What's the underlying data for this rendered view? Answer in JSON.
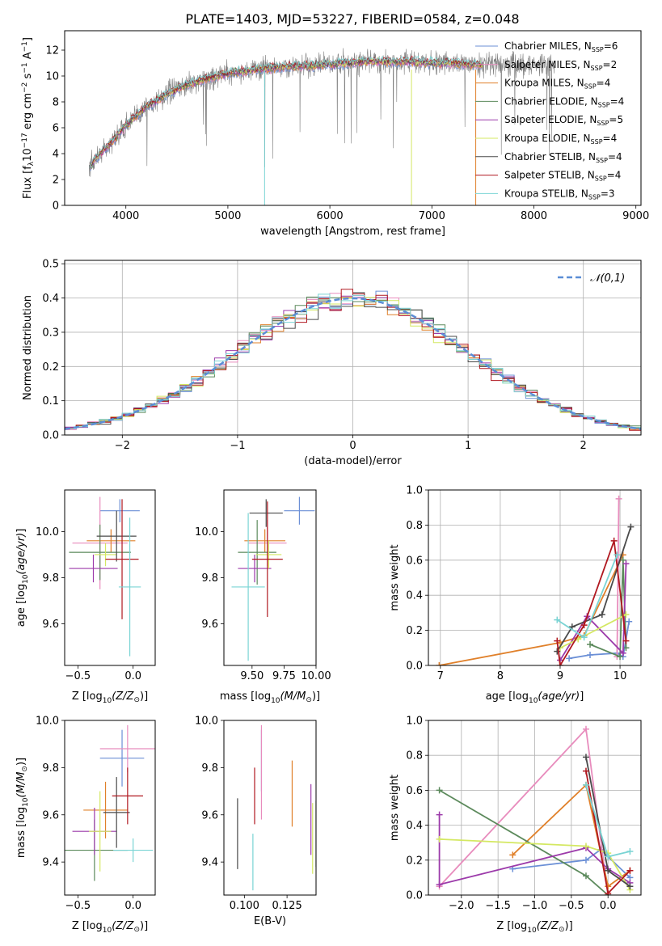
{
  "colors": {
    "series": [
      "#6b8fd6",
      "#e88cbd",
      "#e0802a",
      "#5c8a5c",
      "#9c3aaa",
      "#d4e862",
      "#4a4a4a",
      "#b01820",
      "#7ad4d4"
    ],
    "spectrum": "#808080",
    "normal": "#5b8ed6"
  },
  "figure_title": "PLATE=1403, MJD=53227, FIBERID=0584, z=0.048",
  "chart_data": [
    {
      "id": "spectrum",
      "type": "line",
      "title": "PLATE=1403, MJD=53227, FIBERID=0584, z=0.048",
      "xlabel": "wavelength [Angstrom, rest frame]",
      "ylabel": "Flux [f_λ 10^−17 erg cm^−2 s^−1 A^−1]",
      "xlim": [
        3400,
        9050
      ],
      "ylim": [
        0,
        13.5
      ],
      "xticks": [
        4000,
        5000,
        6000,
        7000,
        8000,
        9000
      ],
      "yticks": [
        0,
        2,
        4,
        6,
        8,
        10,
        12
      ],
      "continuum": {
        "x": [
          3640,
          3700,
          3800,
          3900,
          4000,
          4200,
          4400,
          4600,
          4800,
          5000,
          5200,
          5400,
          5600,
          5800,
          6000,
          6200,
          6400,
          6600,
          6800,
          7000,
          7200,
          7400
        ],
        "y": [
          2.8,
          3.6,
          4.4,
          5.2,
          6.2,
          7.6,
          8.6,
          9.3,
          9.8,
          10.2,
          10.4,
          10.6,
          10.7,
          10.8,
          10.9,
          11.0,
          11.1,
          11.1,
          11.1,
          11.0,
          11.0,
          10.9
        ]
      },
      "model_end_x": 7500,
      "data_end_x": 8200,
      "legend": [
        {
          "label": "Chabrier MILES, N_SSP=6",
          "base": "Chabrier MILES, N",
          "sub": "SSP",
          "tail": "=6"
        },
        {
          "label": "Salpeter MILES, N_SSP=2",
          "base": "Salpeter MILES, N",
          "sub": "SSP",
          "tail": "=2"
        },
        {
          "label": "Kroupa MILES, N_SSP=4",
          "base": "Kroupa MILES, N",
          "sub": "SSP",
          "tail": "=4"
        },
        {
          "label": "Chabrier ELODIE, N_SSP=4",
          "base": "Chabrier ELODIE, N",
          "sub": "SSP",
          "tail": "=4"
        },
        {
          "label": "Salpeter ELODIE, N_SSP=5",
          "base": "Salpeter ELODIE, N",
          "sub": "SSP",
          "tail": "=5"
        },
        {
          "label": "Kroupa ELODIE, N_SSP=4",
          "base": "Kroupa ELODIE, N",
          "sub": "SSP",
          "tail": "=4"
        },
        {
          "label": "Chabrier STELIB, N_SSP=4",
          "base": "Chabrier STELIB, N",
          "sub": "SSP",
          "tail": "=4"
        },
        {
          "label": "Salpeter STELIB, N_SSP=4",
          "base": "Salpeter STELIB, N",
          "sub": "SSP",
          "tail": "=4"
        },
        {
          "label": "Kroupa STELIB, N_SSP=3",
          "base": "Kroupa STELIB, N",
          "sub": "SSP",
          "tail": "=3"
        }
      ],
      "legend_position": "upper-right"
    },
    {
      "id": "residuals",
      "type": "histogram",
      "xlabel": "(data-model)/error",
      "ylabel": "Normed distribution",
      "xlim": [
        -2.5,
        2.5
      ],
      "ylim": [
        0,
        0.51
      ],
      "xticks": [
        -2,
        -1,
        0,
        1,
        2
      ],
      "yticks": [
        0.0,
        0.1,
        0.2,
        0.3,
        0.4,
        0.5
      ],
      "bins": {
        "start": -2.5,
        "width": 0.1,
        "count": 50
      },
      "reference_label": "𝒩(0,1)",
      "legend_position": "upper-right",
      "grid": true
    },
    {
      "id": "age-vs-Z",
      "type": "errorbar",
      "xlabel": "Z [log10(Z/Z⊙)]",
      "ylabel": "age [log10(age/yr)]",
      "xlim": [
        -0.62,
        0.2
      ],
      "ylim": [
        9.42,
        10.18
      ],
      "xticks": [
        -0.5,
        0.0
      ],
      "yticks": [
        9.6,
        9.8,
        10.0
      ],
      "points": [
        {
          "x": -0.12,
          "y": 10.09,
          "xerr": 0.18,
          "yerr": 0.05
        },
        {
          "x": -0.3,
          "y": 9.95,
          "xerr": 0.25,
          "yerr": 0.2
        },
        {
          "x": -0.2,
          "y": 9.96,
          "xerr": 0.22,
          "yerr": 0.05
        },
        {
          "x": -0.3,
          "y": 9.91,
          "xerr": 0.28,
          "yerr": 0.12
        },
        {
          "x": -0.36,
          "y": 9.84,
          "xerr": 0.22,
          "yerr": 0.06
        },
        {
          "x": -0.25,
          "y": 9.9,
          "xerr": 0.1,
          "yerr": 0.05
        },
        {
          "x": -0.15,
          "y": 9.98,
          "xerr": 0.18,
          "yerr": 0.11
        },
        {
          "x": -0.1,
          "y": 9.88,
          "xerr": 0.15,
          "yerr": 0.26
        },
        {
          "x": -0.03,
          "y": 9.76,
          "xerr": 0.1,
          "yerr": 0.3
        }
      ]
    },
    {
      "id": "age-vs-mass",
      "type": "errorbar",
      "xlabel": "mass [log10(M/M⊙)]",
      "ylabel": "",
      "xlim": [
        9.28,
        10.0
      ],
      "ylim": [
        9.42,
        10.18
      ],
      "xticks": [
        9.5,
        9.75,
        10.0
      ],
      "yticks": [
        9.6,
        9.8,
        10.0
      ],
      "points": [
        {
          "x": 9.87,
          "y": 10.09,
          "xerr": 0.12,
          "yerr": 0.06
        },
        {
          "x": 9.62,
          "y": 9.95,
          "xerr": 0.15,
          "yerr": 0.1
        },
        {
          "x": 9.6,
          "y": 9.96,
          "xerr": 0.16,
          "yerr": 0.05
        },
        {
          "x": 9.54,
          "y": 9.91,
          "xerr": 0.15,
          "yerr": 0.14
        },
        {
          "x": 9.52,
          "y": 9.84,
          "xerr": 0.13,
          "yerr": 0.06
        },
        {
          "x": 9.63,
          "y": 9.9,
          "xerr": 0.1,
          "yerr": 0.06
        },
        {
          "x": 9.61,
          "y": 10.08,
          "xerr": 0.13,
          "yerr": 0.06
        },
        {
          "x": 9.62,
          "y": 9.88,
          "xerr": 0.12,
          "yerr": 0.25
        },
        {
          "x": 9.47,
          "y": 9.76,
          "xerr": 0.13,
          "yerr": 0.32
        }
      ]
    },
    {
      "id": "mass-weight-vs-age",
      "type": "line",
      "xlabel": "age [log10(age/yr)]",
      "ylabel": "mass weight",
      "xlim": [
        6.8,
        10.35
      ],
      "ylim": [
        0,
        1.0
      ],
      "xticks": [
        7,
        8,
        9,
        10
      ],
      "yticks": [
        0.0,
        0.2,
        0.4,
        0.6,
        0.8,
        1.0
      ],
      "grid": true,
      "series": [
        {
          "x": [
            9.15,
            9.5,
            9.95,
            10.05,
            10.15
          ],
          "y": [
            0.04,
            0.06,
            0.07,
            0.05,
            0.25
          ]
        },
        {
          "x": [
            9.95,
            9.98
          ],
          "y": [
            0.05,
            0.95
          ]
        },
        {
          "x": [
            6.98,
            9.0,
            9.4,
            10.05
          ],
          "y": [
            0.0,
            0.13,
            0.17,
            0.63
          ]
        },
        {
          "x": [
            9.5,
            10.0,
            10.05,
            10.1
          ],
          "y": [
            0.12,
            0.05,
            0.6,
            0.1
          ]
        },
        {
          "x": [
            9.0,
            9.45,
            10.05,
            10.1
          ],
          "y": [
            0.03,
            0.28,
            0.07,
            0.58
          ]
        },
        {
          "x": [
            9.0,
            9.3,
            10.1
          ],
          "y": [
            0.1,
            0.15,
            0.29
          ]
        },
        {
          "x": [
            8.95,
            9.2,
            9.7,
            10.18
          ],
          "y": [
            0.08,
            0.22,
            0.29,
            0.79
          ]
        },
        {
          "x": [
            8.95,
            9.0,
            9.4,
            9.9,
            10.1
          ],
          "y": [
            0.14,
            0.0,
            0.23,
            0.71,
            0.14
          ]
        },
        {
          "x": [
            8.95,
            9.4,
            9.95
          ],
          "y": [
            0.26,
            0.16,
            0.63
          ]
        }
      ]
    },
    {
      "id": "mass-vs-Z",
      "type": "errorbar",
      "xlabel": "Z [log10(Z/Z⊙)]",
      "ylabel": "mass [log10(M/M⊙)]",
      "xlim": [
        -0.62,
        0.2
      ],
      "ylim": [
        9.26,
        10.0
      ],
      "xticks": [
        -0.5,
        0.0
      ],
      "yticks": [
        9.4,
        9.6,
        9.8,
        10.0
      ],
      "points": [
        {
          "x": -0.1,
          "y": 9.84,
          "xerr": 0.2,
          "yerr": 0.12
        },
        {
          "x": -0.05,
          "y": 9.88,
          "xerr": 0.25,
          "yerr": 0.1
        },
        {
          "x": -0.25,
          "y": 9.62,
          "xerr": 0.2,
          "yerr": 0.12
        },
        {
          "x": -0.35,
          "y": 9.45,
          "xerr": 0.3,
          "yerr": 0.13
        },
        {
          "x": -0.35,
          "y": 9.53,
          "xerr": 0.2,
          "yerr": 0.1
        },
        {
          "x": -0.3,
          "y": 9.53,
          "xerr": 0.1,
          "yerr": 0.17
        },
        {
          "x": -0.15,
          "y": 9.61,
          "xerr": 0.12,
          "yerr": 0.15
        },
        {
          "x": -0.05,
          "y": 9.68,
          "xerr": 0.14,
          "yerr": 0.12
        },
        {
          "x": 0.0,
          "y": 9.45,
          "xerr": 0.18,
          "yerr": 0.05
        }
      ]
    },
    {
      "id": "mass-vs-ebv",
      "type": "errorbar",
      "xlabel": "E(B-V)",
      "ylabel": "",
      "xlim": [
        0.088,
        0.142
      ],
      "ylim": [
        9.26,
        10.0
      ],
      "xticks": [
        0.1,
        0.125
      ],
      "yticks": [
        9.4,
        9.6,
        9.8,
        10.0
      ],
      "points": [
        {
          "x": 0.11,
          "y": 9.83,
          "yerr": 0.13
        },
        {
          "x": 0.11,
          "y": 9.78,
          "yerr": 0.2
        },
        {
          "x": 0.128,
          "y": 9.69,
          "yerr": 0.14
        },
        {
          "x": 0.142,
          "y": 9.52,
          "yerr": 0.14
        },
        {
          "x": 0.139,
          "y": 9.58,
          "yerr": 0.15
        },
        {
          "x": 0.14,
          "y": 9.5,
          "yerr": 0.15
        },
        {
          "x": 0.096,
          "y": 9.52,
          "yerr": 0.15
        },
        {
          "x": 0.106,
          "y": 9.68,
          "yerr": 0.12
        },
        {
          "x": 0.105,
          "y": 9.4,
          "yerr": 0.12
        }
      ]
    },
    {
      "id": "mass-weight-vs-Z",
      "type": "line",
      "xlabel": "Z [log10(Z/Z⊙)]",
      "ylabel": "mass weight",
      "xlim": [
        -2.45,
        0.45
      ],
      "ylim": [
        0,
        1.0
      ],
      "xticks": [
        -2.0,
        -1.5,
        -1.0,
        -0.5,
        0.0
      ],
      "yticks": [
        0.0,
        0.2,
        0.4,
        0.6,
        0.8,
        1.0
      ],
      "grid": true,
      "series": [
        {
          "x": [
            -1.3,
            -0.3,
            -0.1,
            0.3
          ],
          "y": [
            0.15,
            0.2,
            0.26,
            0.1
          ]
        },
        {
          "x": [
            -2.3,
            -0.3,
            0.0
          ],
          "y": [
            0.05,
            0.95,
            0.0
          ]
        },
        {
          "x": [
            -1.3,
            -0.3,
            0.0,
            0.3
          ],
          "y": [
            0.23,
            0.63,
            0.05,
            0.14
          ]
        },
        {
          "x": [
            -2.3,
            -0.3,
            0.0
          ],
          "y": [
            0.6,
            0.11,
            0.0
          ]
        },
        {
          "x": [
            -2.3,
            -2.3,
            -0.3,
            0.0,
            0.3
          ],
          "y": [
            0.46,
            0.06,
            0.27,
            0.15,
            0.07
          ]
        },
        {
          "x": [
            -2.3,
            -0.3,
            0.0,
            0.3
          ],
          "y": [
            0.32,
            0.28,
            0.24,
            0.03
          ]
        },
        {
          "x": [
            -0.3,
            0.0,
            0.3
          ],
          "y": [
            0.79,
            0.14,
            0.05
          ]
        },
        {
          "x": [
            -0.3,
            0.0,
            0.3
          ],
          "y": [
            0.71,
            0.01,
            0.14
          ]
        },
        {
          "x": [
            -0.3,
            0.0,
            0.3
          ],
          "y": [
            0.63,
            0.22,
            0.25
          ]
        }
      ]
    }
  ]
}
